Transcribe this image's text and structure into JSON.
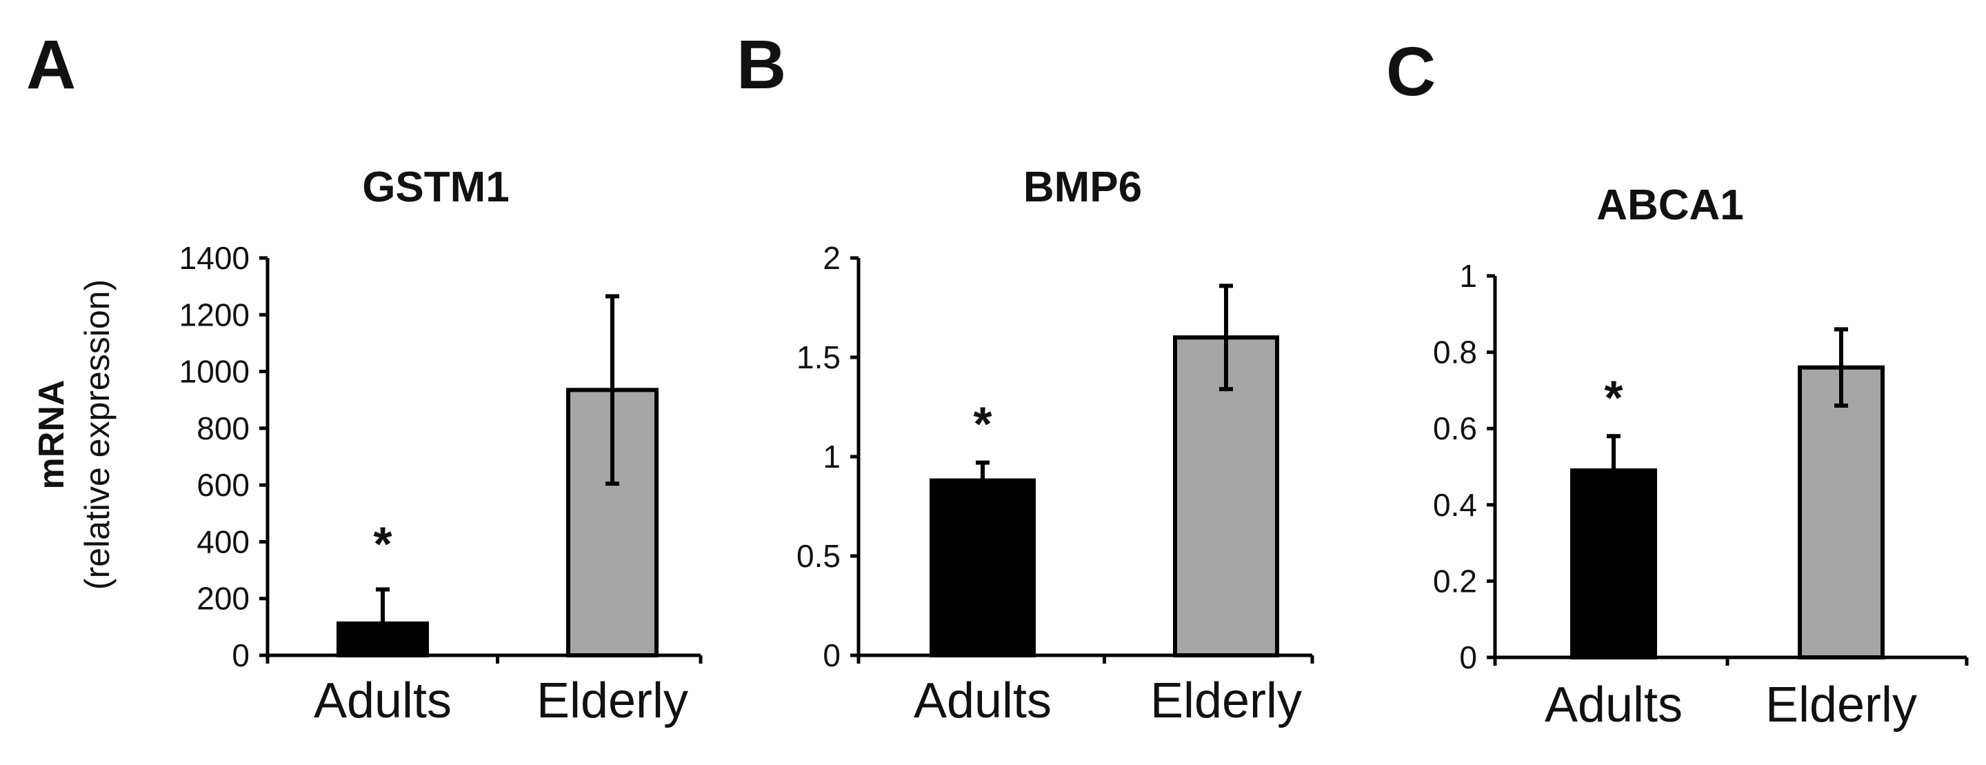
{
  "ylabel_main": "mRNA",
  "ylabel_sub": "(relative expression)",
  "chart_data": [
    {
      "type": "bar",
      "panel": "A",
      "title": "GSTM1",
      "categories": [
        "Adults",
        "Elderly"
      ],
      "values": [
        112,
        935
      ],
      "errors": [
        120,
        330
      ],
      "bar_colors": [
        "#000000",
        "#a6a6a6"
      ],
      "significance": [
        "*",
        ""
      ],
      "ylim": [
        0,
        1400
      ],
      "yticks": [
        0,
        200,
        400,
        600,
        800,
        1000,
        1200,
        1400
      ],
      "ytick_labels": [
        "0",
        "200",
        "400",
        "600",
        "800",
        "1000",
        "1200",
        "1400"
      ]
    },
    {
      "type": "bar",
      "panel": "B",
      "title": "BMP6",
      "categories": [
        "Adults",
        "Elderly"
      ],
      "values": [
        0.88,
        1.6
      ],
      "errors": [
        0.09,
        0.26
      ],
      "bar_colors": [
        "#000000",
        "#a6a6a6"
      ],
      "significance": [
        "*",
        ""
      ],
      "ylim": [
        0,
        2
      ],
      "yticks": [
        0,
        0.5,
        1,
        1.5,
        2
      ],
      "ytick_labels": [
        "0",
        "0.5",
        "1",
        "1.5",
        "2"
      ]
    },
    {
      "type": "bar",
      "panel": "C",
      "title": "ABCA1",
      "categories": [
        "Adults",
        "Elderly"
      ],
      "values": [
        0.49,
        0.76
      ],
      "errors": [
        0.09,
        0.1
      ],
      "bar_colors": [
        "#000000",
        "#a6a6a6"
      ],
      "significance": [
        "*",
        ""
      ],
      "ylim": [
        0,
        1
      ],
      "yticks": [
        0,
        0.2,
        0.4,
        0.6,
        0.8,
        1
      ],
      "ytick_labels": [
        "0",
        "0.2",
        "0.4",
        "0.6",
        "0.8",
        "1"
      ]
    }
  ]
}
